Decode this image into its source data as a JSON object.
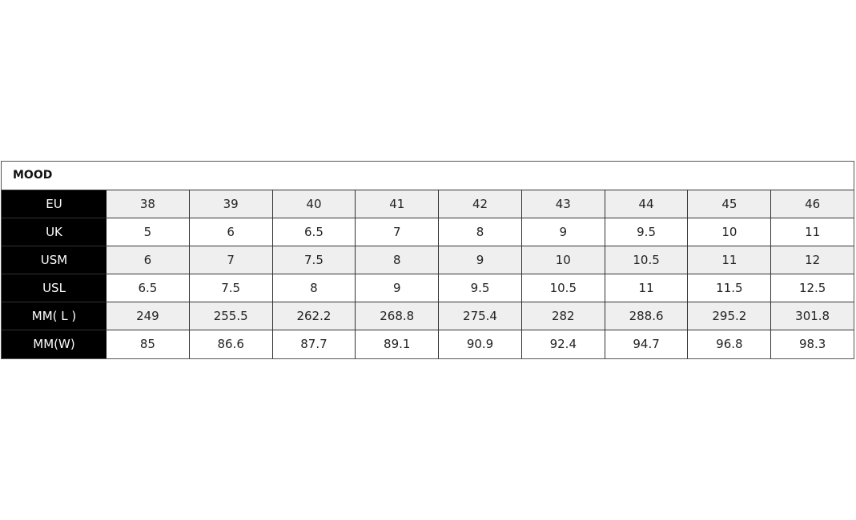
{
  "table": {
    "title": "MOOD",
    "rows": [
      {
        "label": "EU",
        "values": [
          "38",
          "39",
          "40",
          "41",
          "42",
          "43",
          "44",
          "45",
          "46"
        ]
      },
      {
        "label": "UK",
        "values": [
          "5",
          "6",
          "6.5",
          "7",
          "8",
          "9",
          "9.5",
          "10",
          "11"
        ]
      },
      {
        "label": "USM",
        "values": [
          "6",
          "7",
          "7.5",
          "8",
          "9",
          "10",
          "10.5",
          "11",
          "12"
        ]
      },
      {
        "label": "USL",
        "values": [
          "6.5",
          "7.5",
          "8",
          "9",
          "9.5",
          "10.5",
          "11",
          "11.5",
          "12.5"
        ]
      },
      {
        "label": "MM( L )",
        "values": [
          "249",
          "255.5",
          "262.2",
          "268.8",
          "275.4",
          "282",
          "288.6",
          "295.2",
          "301.8"
        ]
      },
      {
        "label": "MM(W)",
        "values": [
          "85",
          "86.6",
          "87.7",
          "89.1",
          "90.9",
          "92.4",
          "94.7",
          "96.8",
          "98.3"
        ]
      }
    ]
  }
}
